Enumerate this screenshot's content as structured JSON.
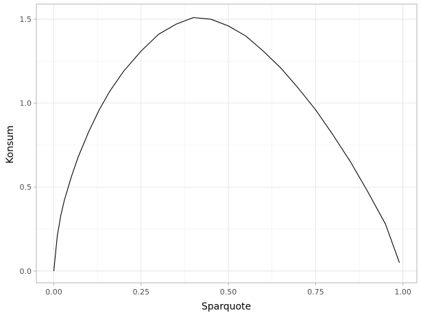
{
  "colors": {
    "background": "#ffffff",
    "panel_border": "#b3b3b3",
    "grid_major": "#e0e0e0",
    "grid_minor": "#f0f0f0",
    "tick_text": "#4d4d4d",
    "tick_mark": "#b3b3b3",
    "line": "#000000"
  },
  "chart_data": {
    "type": "line",
    "xlabel": "Sparquote",
    "ylabel": "Konsum",
    "xlim": [
      -0.05,
      1.04
    ],
    "ylim": [
      -0.07,
      1.59
    ],
    "xticks": [
      0,
      0.25,
      0.5,
      0.75,
      1
    ],
    "xtick_labels": [
      "0.00",
      "0.25",
      "0.50",
      "0.75",
      "1.00"
    ],
    "yticks": [
      0,
      0.5,
      1,
      1.5
    ],
    "ytick_labels": [
      "0.0",
      "0.5",
      "1.0",
      "1.5"
    ],
    "x_minor_ticks": [
      0.125,
      0.375,
      0.625,
      0.875
    ],
    "y_minor_ticks": [
      0.25,
      0.75,
      1.25
    ],
    "grid": true,
    "legend": "none",
    "series": [
      {
        "x": [
          0,
          0.01,
          0.02,
          0.03,
          0.05,
          0.07,
          0.1,
          0.13,
          0.16,
          0.2,
          0.25,
          0.3,
          0.35,
          0.4,
          0.45,
          0.5,
          0.55,
          0.6,
          0.65,
          0.7,
          0.75,
          0.8,
          0.85,
          0.9,
          0.95,
          0.99
        ],
        "y": [
          0,
          0.21,
          0.33,
          0.42,
          0.56,
          0.68,
          0.83,
          0.96,
          1.07,
          1.19,
          1.31,
          1.41,
          1.47,
          1.51,
          1.5,
          1.46,
          1.4,
          1.31,
          1.21,
          1.09,
          0.96,
          0.81,
          0.65,
          0.47,
          0.28,
          0.05
        ]
      }
    ]
  }
}
